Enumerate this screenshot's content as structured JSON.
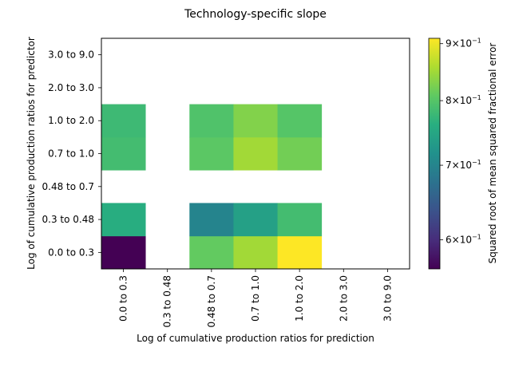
{
  "chart_data": {
    "type": "heatmap",
    "title": "Technology-specific slope",
    "xlabel": "Log of cumulative production ratios for prediction",
    "ylabel": "Log of cumulative production ratios for predictor",
    "x_categories": [
      "0.0 to 0.3",
      "0.3 to 0.48",
      "0.48 to 0.7",
      "0.7 to 1.0",
      "1.0 to 2.0",
      "2.0 to 3.0",
      "3.0 to 9.0"
    ],
    "y_categories": [
      "0.0 to 0.3",
      "0.3 to 0.48",
      "0.48 to 0.7",
      "0.7 to 1.0",
      "1.0 to 2.0",
      "2.0 to 3.0",
      "3.0 to 9.0"
    ],
    "values": [
      [
        0.565,
        null,
        0.81,
        0.85,
        0.91,
        null,
        null
      ],
      [
        0.76,
        null,
        0.7,
        0.74,
        0.785,
        null,
        null
      ],
      [
        null,
        null,
        null,
        null,
        null,
        null,
        null
      ],
      [
        0.785,
        null,
        0.805,
        0.85,
        0.82,
        null,
        null
      ],
      [
        0.78,
        null,
        0.795,
        0.83,
        0.8,
        null,
        null
      ],
      [
        null,
        null,
        null,
        null,
        null,
        null,
        null
      ],
      [
        null,
        null,
        null,
        null,
        null,
        null,
        null
      ]
    ],
    "colorbar": {
      "label": "Squared root of mean squared fractional error",
      "scale": "log",
      "range": [
        0.565,
        0.91
      ],
      "ticks": [
        {
          "value": 0.6,
          "mantissa": "6",
          "base": "×10",
          "exponent": "−1"
        },
        {
          "value": 0.7,
          "mantissa": "7",
          "base": "×10",
          "exponent": "−1"
        },
        {
          "value": 0.8,
          "mantissa": "8",
          "base": "×10",
          "exponent": "−1"
        },
        {
          "value": 0.9,
          "mantissa": "9",
          "base": "×10",
          "exponent": "−1"
        }
      ],
      "colormap": "viridis"
    }
  }
}
